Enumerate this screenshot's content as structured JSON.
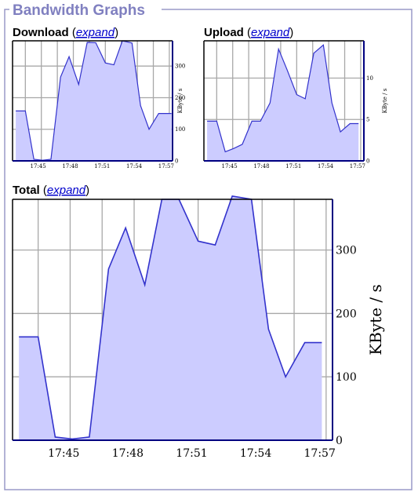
{
  "fieldset": {
    "legend": "Bandwidth Graphs"
  },
  "colors": {
    "legend_text": "#8080c0",
    "frame": "#9a9ac8",
    "grid": "#a8a8a8",
    "fill": "#ccccff",
    "line": "#3333cc",
    "axis": "#000080",
    "link": "#0000cc"
  },
  "chart_data": [
    {
      "type": "area",
      "panel": "download",
      "title": "Download",
      "expand_label": "expand",
      "xlabel": "",
      "ylabel": "KByte / s",
      "ylim": [
        0,
        380
      ],
      "yticks": [
        0,
        100,
        200,
        300
      ],
      "xticks": [
        "17:45",
        "17:48",
        "17:51",
        "17:54",
        "17:57"
      ],
      "x_minutes": [
        -2.1,
        -1.2,
        -0.4,
        0.4,
        1.2,
        2.1,
        2.9,
        3.8,
        4.6,
        5.4,
        6.3,
        7.1,
        7.9,
        8.8,
        9.6,
        10.4,
        11.3,
        12.1,
        12.5
      ],
      "values": [
        158,
        158,
        5,
        2,
        5,
        265,
        330,
        242,
        375,
        374,
        310,
        304,
        380,
        373,
        175,
        100,
        150,
        150,
        150
      ],
      "grid": true,
      "legend": "none"
    },
    {
      "type": "area",
      "panel": "upload",
      "title": "Upload",
      "expand_label": "expand",
      "xlabel": "",
      "ylabel": "KByte / s",
      "ylim": [
        0,
        14.5
      ],
      "yticks": [
        0,
        5,
        10
      ],
      "xticks": [
        "17:45",
        "17:48",
        "17:51",
        "17:54",
        "17:57"
      ],
      "x_minutes": [
        -2.1,
        -1.2,
        -0.4,
        0.4,
        1.2,
        2.1,
        2.9,
        3.8,
        4.6,
        5.4,
        6.3,
        7.1,
        7.9,
        8.8,
        9.6,
        10.4,
        11.3,
        12.1
      ],
      "values": [
        4.8,
        4.8,
        1.1,
        1.5,
        2.0,
        4.8,
        4.8,
        7.0,
        13.5,
        11.0,
        8.0,
        7.5,
        13.0,
        14.0,
        7.0,
        3.5,
        4.5,
        4.5
      ],
      "grid": true,
      "legend": "none"
    },
    {
      "type": "area",
      "panel": "total",
      "title": "Total",
      "expand_label": "expand",
      "xlabel": "",
      "ylabel": "KByte / s",
      "ylim": [
        0,
        380
      ],
      "yticks": [
        0,
        100,
        200,
        300
      ],
      "xticks": [
        "17:45",
        "17:48",
        "17:51",
        "17:54",
        "17:57"
      ],
      "x_minutes": [
        -2.1,
        -1.2,
        -0.4,
        0.4,
        1.2,
        2.1,
        2.9,
        3.8,
        4.6,
        5.4,
        6.3,
        7.1,
        7.9,
        8.8,
        9.6,
        10.4,
        11.3,
        12.1
      ],
      "values": [
        163,
        163,
        5,
        2,
        5,
        270,
        335,
        245,
        380,
        380,
        314,
        308,
        385,
        380,
        175,
        100,
        154,
        154
      ],
      "grid": true,
      "legend": "none"
    }
  ]
}
